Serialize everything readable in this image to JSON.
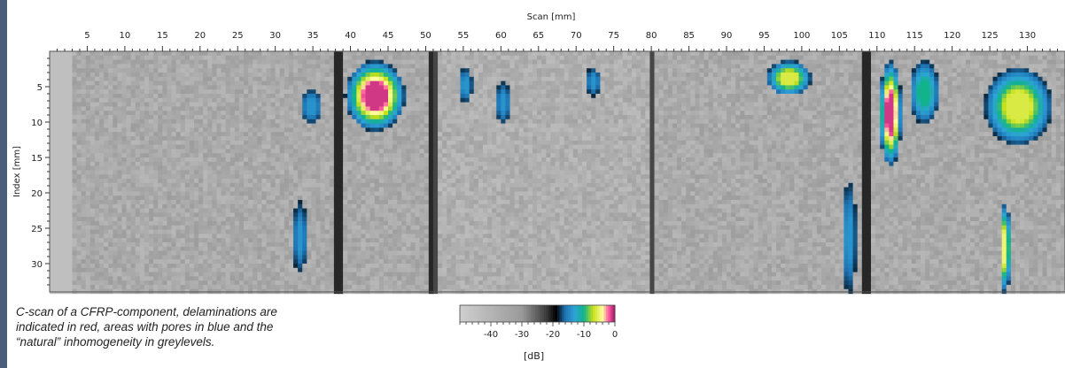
{
  "chart_data": {
    "type": "heatmap",
    "title": "",
    "xlabel": "Scan [mm]",
    "ylabel": "Index [mm]",
    "xlim": [
      0,
      135
    ],
    "ylim": [
      0,
      34
    ],
    "x_ticks": [
      5,
      10,
      15,
      20,
      25,
      30,
      35,
      40,
      45,
      50,
      55,
      60,
      65,
      70,
      75,
      80,
      85,
      90,
      95,
      100,
      105,
      110,
      115,
      120,
      125,
      130
    ],
    "y_ticks": [
      5,
      10,
      15,
      20,
      25,
      30
    ],
    "colorbar": {
      "label": "[dB]",
      "ticks": [
        -40,
        -30,
        -20,
        -10,
        0
      ],
      "range": [
        -50,
        0
      ],
      "stops": [
        {
          "db": -50,
          "color": "#cfcfcf"
        },
        {
          "db": -30,
          "color": "#9a9a9a"
        },
        {
          "db": -22,
          "color": "#3a3a3a"
        },
        {
          "db": -19,
          "color": "#000000"
        },
        {
          "db": -16,
          "color": "#1f74b4"
        },
        {
          "db": -13,
          "color": "#2ea3d8"
        },
        {
          "db": -10,
          "color": "#11b38a"
        },
        {
          "db": -7,
          "color": "#c8e018"
        },
        {
          "db": -4,
          "color": "#ffffa0"
        },
        {
          "db": -2,
          "color": "#ff5aa0"
        },
        {
          "db": 0,
          "color": "#a0166c"
        }
      ]
    },
    "regions": [
      {
        "x": [
          39,
          47
        ],
        "y": [
          1,
          11
        ],
        "kind": "delamination",
        "peak_db": -1
      },
      {
        "x": [
          110,
          113
        ],
        "y": [
          1,
          16
        ],
        "kind": "delamination",
        "peak_db": -1
      },
      {
        "x": [
          126,
          127.5
        ],
        "y": [
          21,
          34
        ],
        "kind": "delamination",
        "peak_db": -5
      },
      {
        "x": [
          124,
          133
        ],
        "y": [
          2,
          13
        ],
        "kind": "pores",
        "peak_db": -6
      },
      {
        "x": [
          95,
          101
        ],
        "y": [
          1,
          6
        ],
        "kind": "pores",
        "peak_db": -6
      },
      {
        "x": [
          114,
          118
        ],
        "y": [
          1,
          10
        ],
        "kind": "pores",
        "peak_db": -10
      },
      {
        "x": [
          105,
          107
        ],
        "y": [
          18,
          34
        ],
        "kind": "pores",
        "peak_db": -14
      },
      {
        "x": [
          33,
          36
        ],
        "y": [
          5,
          10
        ],
        "kind": "pores",
        "peak_db": -14
      },
      {
        "x": [
          32,
          34
        ],
        "y": [
          21,
          31
        ],
        "kind": "pores",
        "peak_db": -14
      },
      {
        "x": [
          54,
          56
        ],
        "y": [
          2,
          7
        ],
        "kind": "pores",
        "peak_db": -14
      },
      {
        "x": [
          59,
          61
        ],
        "y": [
          4,
          10
        ],
        "kind": "pores",
        "peak_db": -14
      },
      {
        "x": [
          71,
          73
        ],
        "y": [
          2,
          6
        ],
        "kind": "pores",
        "peak_db": -14
      }
    ]
  },
  "caption": {
    "lines": [
      "C-scan of a CFRP-component, delaminations are",
      "indicated in red, areas with pores in blue and the",
      "“natural” inhomogeneity in greylevels."
    ]
  },
  "colors": {
    "frame": "#4a5d7a",
    "panel": "#ffffff"
  }
}
